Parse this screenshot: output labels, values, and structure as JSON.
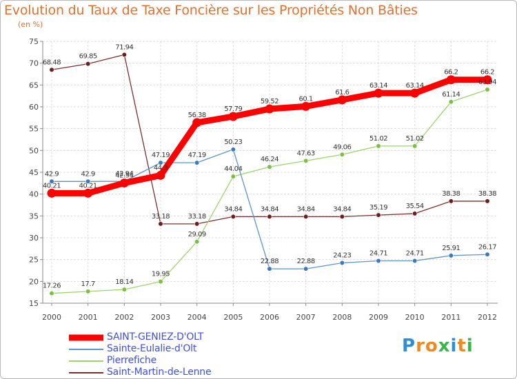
{
  "title": "Evolution du Taux de Taxe Foncière sur les Propriétés Non Bâties",
  "subtitle": "(en %)",
  "logo": {
    "text": "Proxiti",
    "letters": [
      "P",
      "r",
      "o",
      "x",
      "i",
      "t",
      "i"
    ],
    "colors": [
      "#2f8fd6",
      "#f08a1c",
      "#f08a1c",
      "#3ab54a",
      "#2f8fd6",
      "#f08a1c",
      "#3ab54a"
    ]
  },
  "legend": [
    {
      "label": "SAINT-GENIEZ-D'OLT",
      "color": "#ff0000"
    },
    {
      "label": "Sainte-Eulalie-d'Olt",
      "color": "#5b93c7"
    },
    {
      "label": "Pierrefiche",
      "color": "#9ed36a"
    },
    {
      "label": "Saint-Martin-de-Lenne",
      "color": "#7a2f2f"
    }
  ],
  "chart_data": {
    "type": "line",
    "title": "Evolution du Taux de Taxe Foncière sur les Propriétés Non Bâties",
    "ylabel": "(en %)",
    "xlabel": "",
    "ylim": [
      15,
      75
    ],
    "yticks": [
      "15",
      "20",
      "25",
      "30",
      "35",
      "40",
      "45",
      "50",
      "55",
      "60",
      "65",
      "70",
      "75"
    ],
    "categories": [
      "2000",
      "2001",
      "2002",
      "2003",
      "2004",
      "2005",
      "2006",
      "2007",
      "2008",
      "2009",
      "2010",
      "2011",
      "2012"
    ],
    "grid": true,
    "legend_position": "bottom-left",
    "series": [
      {
        "name": "Saint-Martin-de-Lenne",
        "color": "#7a2f2f",
        "marker": "#6b1f1f",
        "thick": false,
        "values": [
          68.48,
          69.85,
          71.94,
          33.18,
          33.18,
          34.84,
          34.84,
          34.84,
          34.84,
          35.19,
          35.54,
          38.38,
          38.38
        ],
        "labels": [
          "68.48",
          "69.85",
          "71.94",
          "33.18",
          "33.18",
          "34.84",
          "34.84",
          "34.84",
          "34.84",
          "35.19",
          "35.54",
          "38.38",
          "38.38"
        ]
      },
      {
        "name": "Pierrefiche",
        "color": "#9ed36a",
        "marker": "#7cc043",
        "thick": false,
        "values": [
          17.26,
          17.7,
          18.14,
          19.95,
          29.09,
          44.04,
          46.24,
          47.63,
          49.06,
          51.02,
          51.02,
          61.14,
          63.94
        ],
        "labels": [
          "17.26",
          "17.7",
          "18.14",
          "19.95",
          "29.09",
          "44.04",
          "46.24",
          "47.63",
          "49.06",
          "51.02",
          "51.02",
          "61.14",
          "63.94"
        ]
      },
      {
        "name": "Sainte-Eulalie-d'Olt",
        "color": "#5b93c7",
        "marker": "#3a7bbd",
        "thick": false,
        "values": [
          42.9,
          42.9,
          42.94,
          47.19,
          47.19,
          50.23,
          22.88,
          22.88,
          24.23,
          24.71,
          24.71,
          25.91,
          26.17
        ],
        "labels": [
          "42.9",
          "42.9",
          "42.94",
          "47.19",
          "47.19",
          "50.23",
          "22.88",
          "22.88",
          "24.23",
          "24.71",
          "24.71",
          "25.91",
          "26.17"
        ]
      },
      {
        "name": "SAINT-GENIEZ-D'OLT",
        "color": "#ff0000",
        "marker": "#ff0000",
        "thick": true,
        "values": [
          40.21,
          40.21,
          42.54,
          44.3,
          56.38,
          57.79,
          59.52,
          60.1,
          61.6,
          63.14,
          63.14,
          66.2,
          66.2
        ],
        "labels": [
          "40.21",
          "40.21",
          "42.54",
          "44.3",
          "56.38",
          "57.79",
          "59.52",
          "60.1",
          "61.6",
          "63.14",
          "63.14",
          "66.2",
          "66.2"
        ]
      }
    ]
  }
}
